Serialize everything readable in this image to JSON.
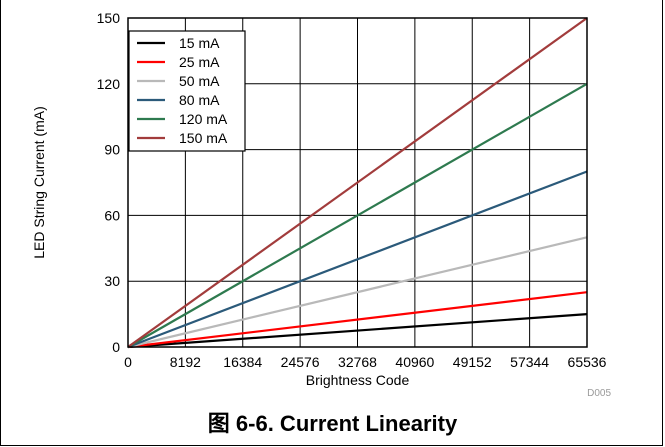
{
  "caption": "图 6-6. Current Linearity",
  "figure_code": "D005",
  "chart_data": {
    "type": "line",
    "title": "",
    "xlabel": "Brightness Code",
    "ylabel": "LED String Current (mA)",
    "xlim": [
      0,
      65536
    ],
    "ylim": [
      0,
      150
    ],
    "xticks": [
      0,
      8192,
      16384,
      24576,
      32768,
      40960,
      49152,
      57344,
      65536
    ],
    "yticks": [
      0,
      30,
      60,
      90,
      120,
      150
    ],
    "grid": true,
    "legend_position": "top-left",
    "series": [
      {
        "name": "15 mA",
        "color": "#000000",
        "x": [
          0,
          65536
        ],
        "y": [
          0,
          15
        ]
      },
      {
        "name": "25 mA",
        "color": "#ff0000",
        "x": [
          0,
          65536
        ],
        "y": [
          0,
          25
        ]
      },
      {
        "name": "50 mA",
        "color": "#b9b9b9",
        "x": [
          0,
          65536
        ],
        "y": [
          0,
          50
        ]
      },
      {
        "name": "80 mA",
        "color": "#2b5a7a",
        "x": [
          0,
          65536
        ],
        "y": [
          0,
          80
        ]
      },
      {
        "name": "120 mA",
        "color": "#2e7a4f",
        "x": [
          0,
          65536
        ],
        "y": [
          0,
          120
        ]
      },
      {
        "name": "150 mA",
        "color": "#a23c3c",
        "x": [
          0,
          65536
        ],
        "y": [
          0,
          150
        ]
      }
    ]
  }
}
